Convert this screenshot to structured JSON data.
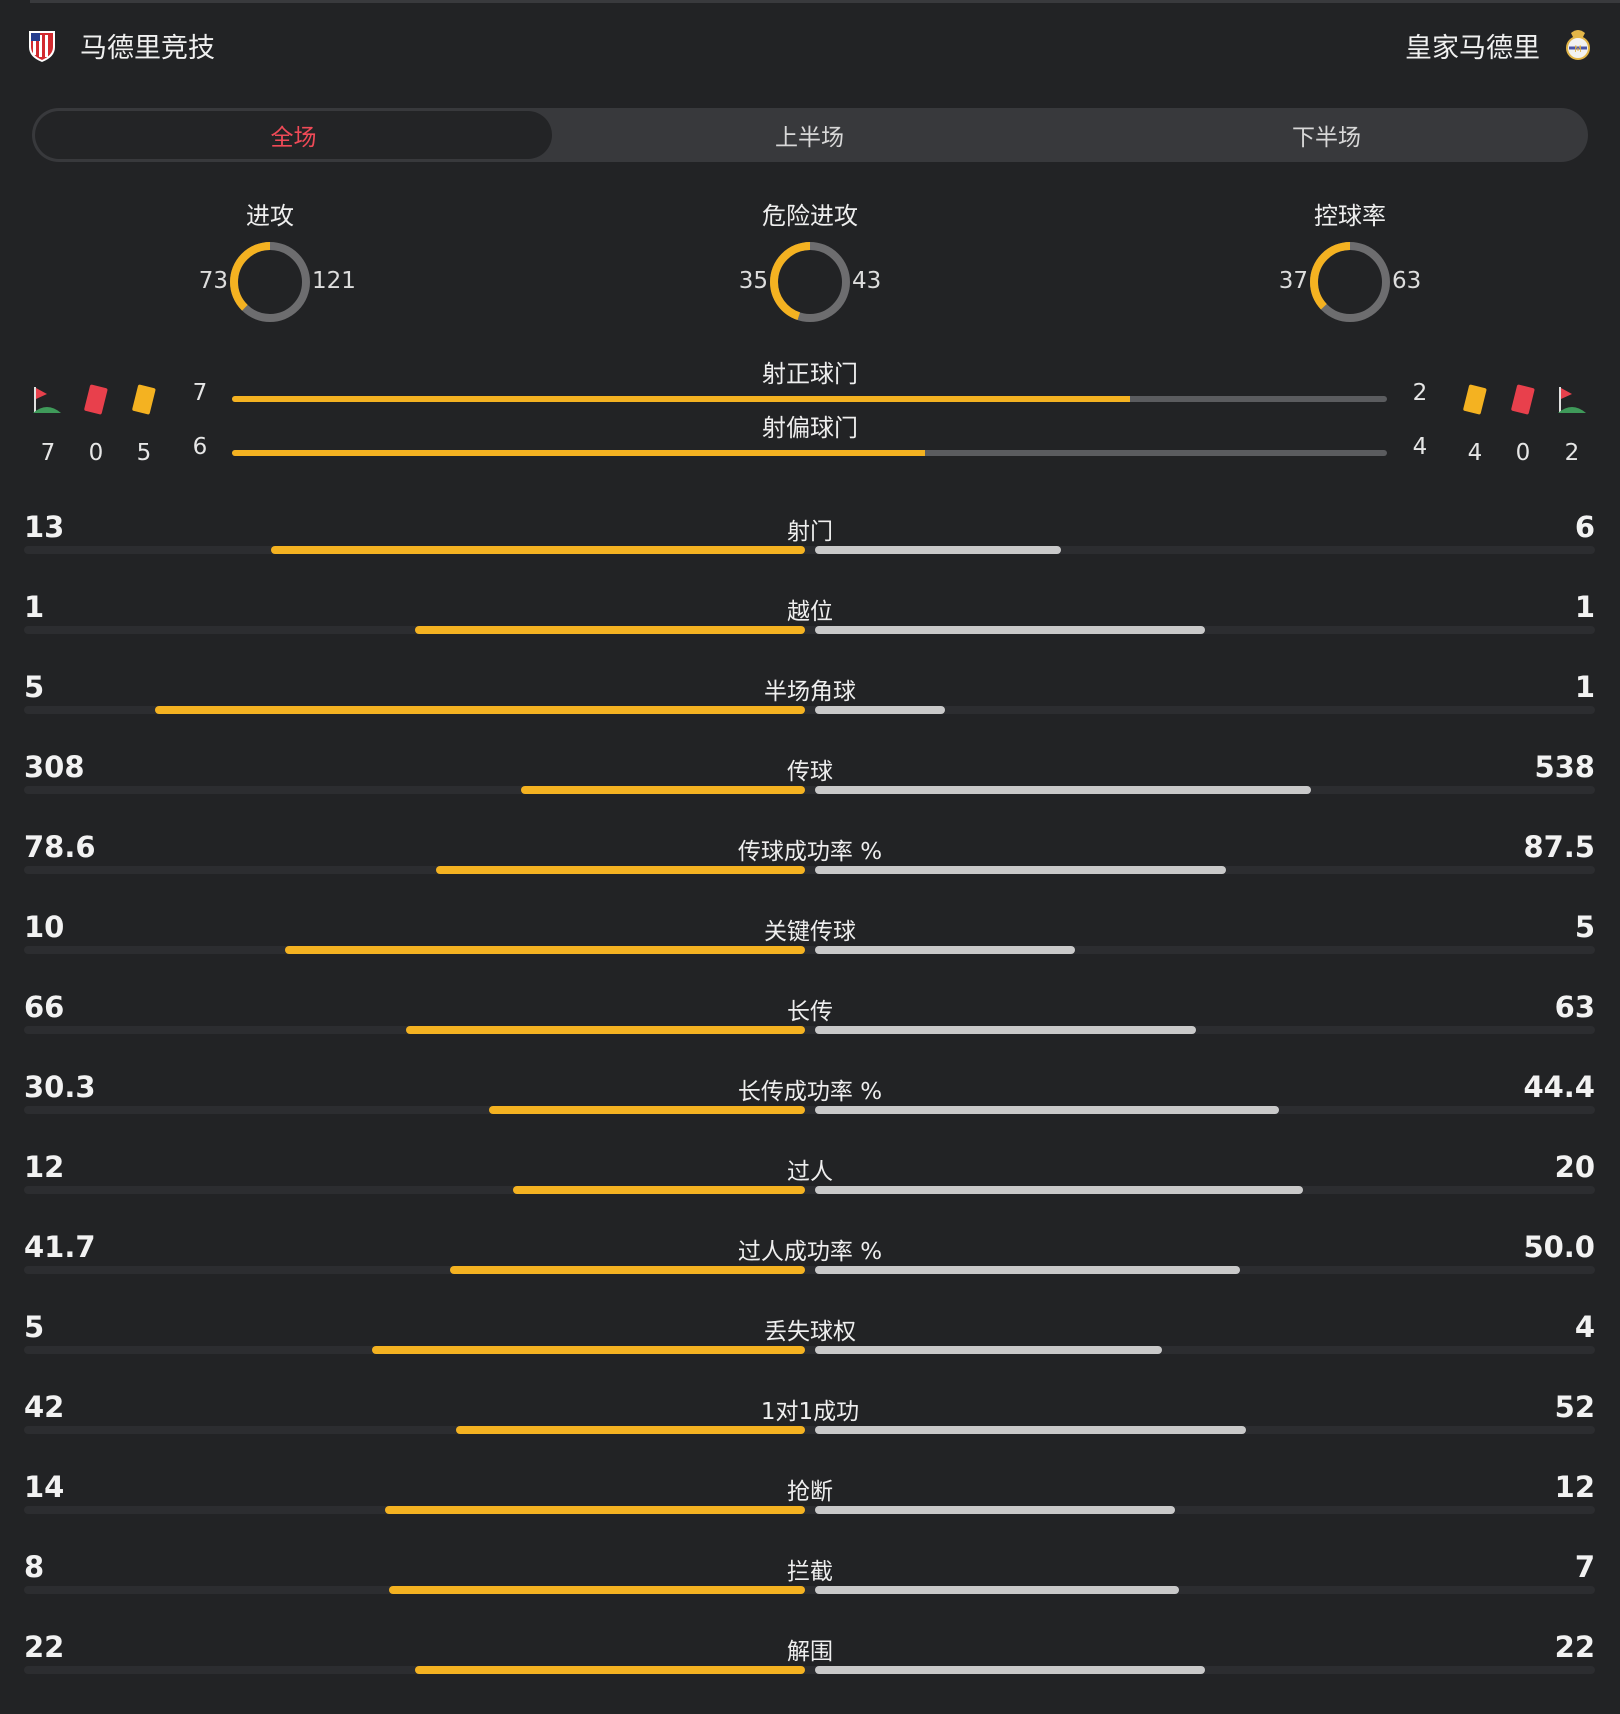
{
  "teams": {
    "home": "马德里竞技",
    "away": "皇家马德里"
  },
  "colors": {
    "home": "#f4b221",
    "away": "#c9c9c9",
    "active_tab": "#ef4a57",
    "donut_rest": "#6d6d6f"
  },
  "tabs": [
    {
      "label": "全场",
      "active": true
    },
    {
      "label": "上半场",
      "active": false
    },
    {
      "label": "下半场",
      "active": false
    }
  ],
  "donuts": [
    {
      "title": "进攻",
      "home": 73,
      "away": 121
    },
    {
      "title": "危险进攻",
      "home": 35,
      "away": 43
    },
    {
      "title": "控球率",
      "home": 37,
      "away": 63
    }
  ],
  "shots": [
    {
      "label": "射正球门",
      "home": 7,
      "away": 2
    },
    {
      "label": "射偏球门",
      "home": 6,
      "away": 4
    }
  ],
  "events": {
    "home": {
      "corners": 7,
      "red_cards": 0,
      "yellow_cards": 5
    },
    "away": {
      "yellow_cards": 4,
      "red_cards": 0,
      "corners": 2
    }
  },
  "stats": [
    {
      "label": "射门",
      "home": "13",
      "away": "6"
    },
    {
      "label": "越位",
      "home": "1",
      "away": "1"
    },
    {
      "label": "半场角球",
      "home": "5",
      "away": "1"
    },
    {
      "label": "传球",
      "home": "308",
      "away": "538"
    },
    {
      "label": "传球成功率 %",
      "home": "78.6",
      "away": "87.5"
    },
    {
      "label": "关键传球",
      "home": "10",
      "away": "5"
    },
    {
      "label": "长传",
      "home": "66",
      "away": "63"
    },
    {
      "label": "长传成功率 %",
      "home": "30.3",
      "away": "44.4"
    },
    {
      "label": "过人",
      "home": "12",
      "away": "20"
    },
    {
      "label": "过人成功率 %",
      "home": "41.7",
      "away": "50.0"
    },
    {
      "label": "丢失球权",
      "home": "5",
      "away": "4"
    },
    {
      "label": "1对1成功",
      "home": "42",
      "away": "52"
    },
    {
      "label": "抢断",
      "home": "14",
      "away": "12"
    },
    {
      "label": "拦截",
      "home": "8",
      "away": "7"
    },
    {
      "label": "解围",
      "home": "22",
      "away": "22"
    }
  ]
}
